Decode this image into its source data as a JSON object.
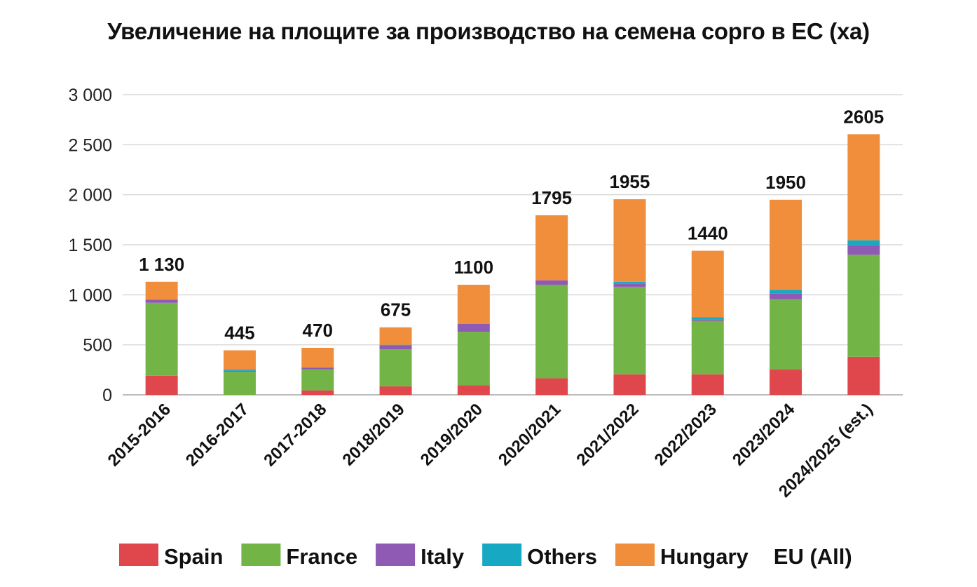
{
  "chart_data": {
    "type": "bar",
    "stacked": true,
    "title": "Увеличение на площите за производство на семена сорго в ЕС (ха)",
    "xlabel": "",
    "ylabel": "",
    "ylim": [
      0,
      3000
    ],
    "yticks": [
      0,
      500,
      1000,
      1500,
      2000,
      2500,
      3000
    ],
    "ytick_labels": [
      "0",
      "500",
      "1 000",
      "1 500",
      "2 000",
      "2 500",
      "3 000"
    ],
    "grid": true,
    "legend_position": "bottom",
    "categories": [
      "2015-2016",
      "2016-2017",
      "2017-2018",
      "2018/2019",
      "2019/2020",
      "2020/2021",
      "2021/2022",
      "2022/2023",
      "2023/2024",
      "2024/2025 (est.)"
    ],
    "series": [
      {
        "name": "Spain",
        "color": "#e0474c",
        "values": [
          190,
          0,
          45,
          85,
          95,
          165,
          205,
          205,
          255,
          380
        ]
      },
      {
        "name": "France",
        "color": "#73b446",
        "values": [
          730,
          230,
          210,
          370,
          535,
          935,
          875,
          535,
          700,
          1020
        ]
      },
      {
        "name": "Italy",
        "color": "#8e5ab4",
        "values": [
          30,
          10,
          15,
          40,
          80,
          45,
          30,
          15,
          55,
          95
        ]
      },
      {
        "name": "Others",
        "color": "#17a9c4",
        "values": [
          0,
          15,
          5,
          5,
          0,
          0,
          20,
          20,
          40,
          50
        ]
      },
      {
        "name": "Hungary",
        "color": "#f18e3b",
        "values": [
          180,
          190,
          195,
          175,
          390,
          650,
          825,
          665,
          900,
          1060
        ]
      }
    ],
    "totals_series_name": "EU (All)",
    "totals": [
      1130,
      445,
      470,
      675,
      1100,
      1795,
      1955,
      1440,
      1950,
      2605
    ],
    "total_labels": [
      "1 130",
      "445",
      "470",
      "675",
      "1100",
      "1795",
      "1955",
      "1440",
      "1950",
      "2605"
    ]
  }
}
